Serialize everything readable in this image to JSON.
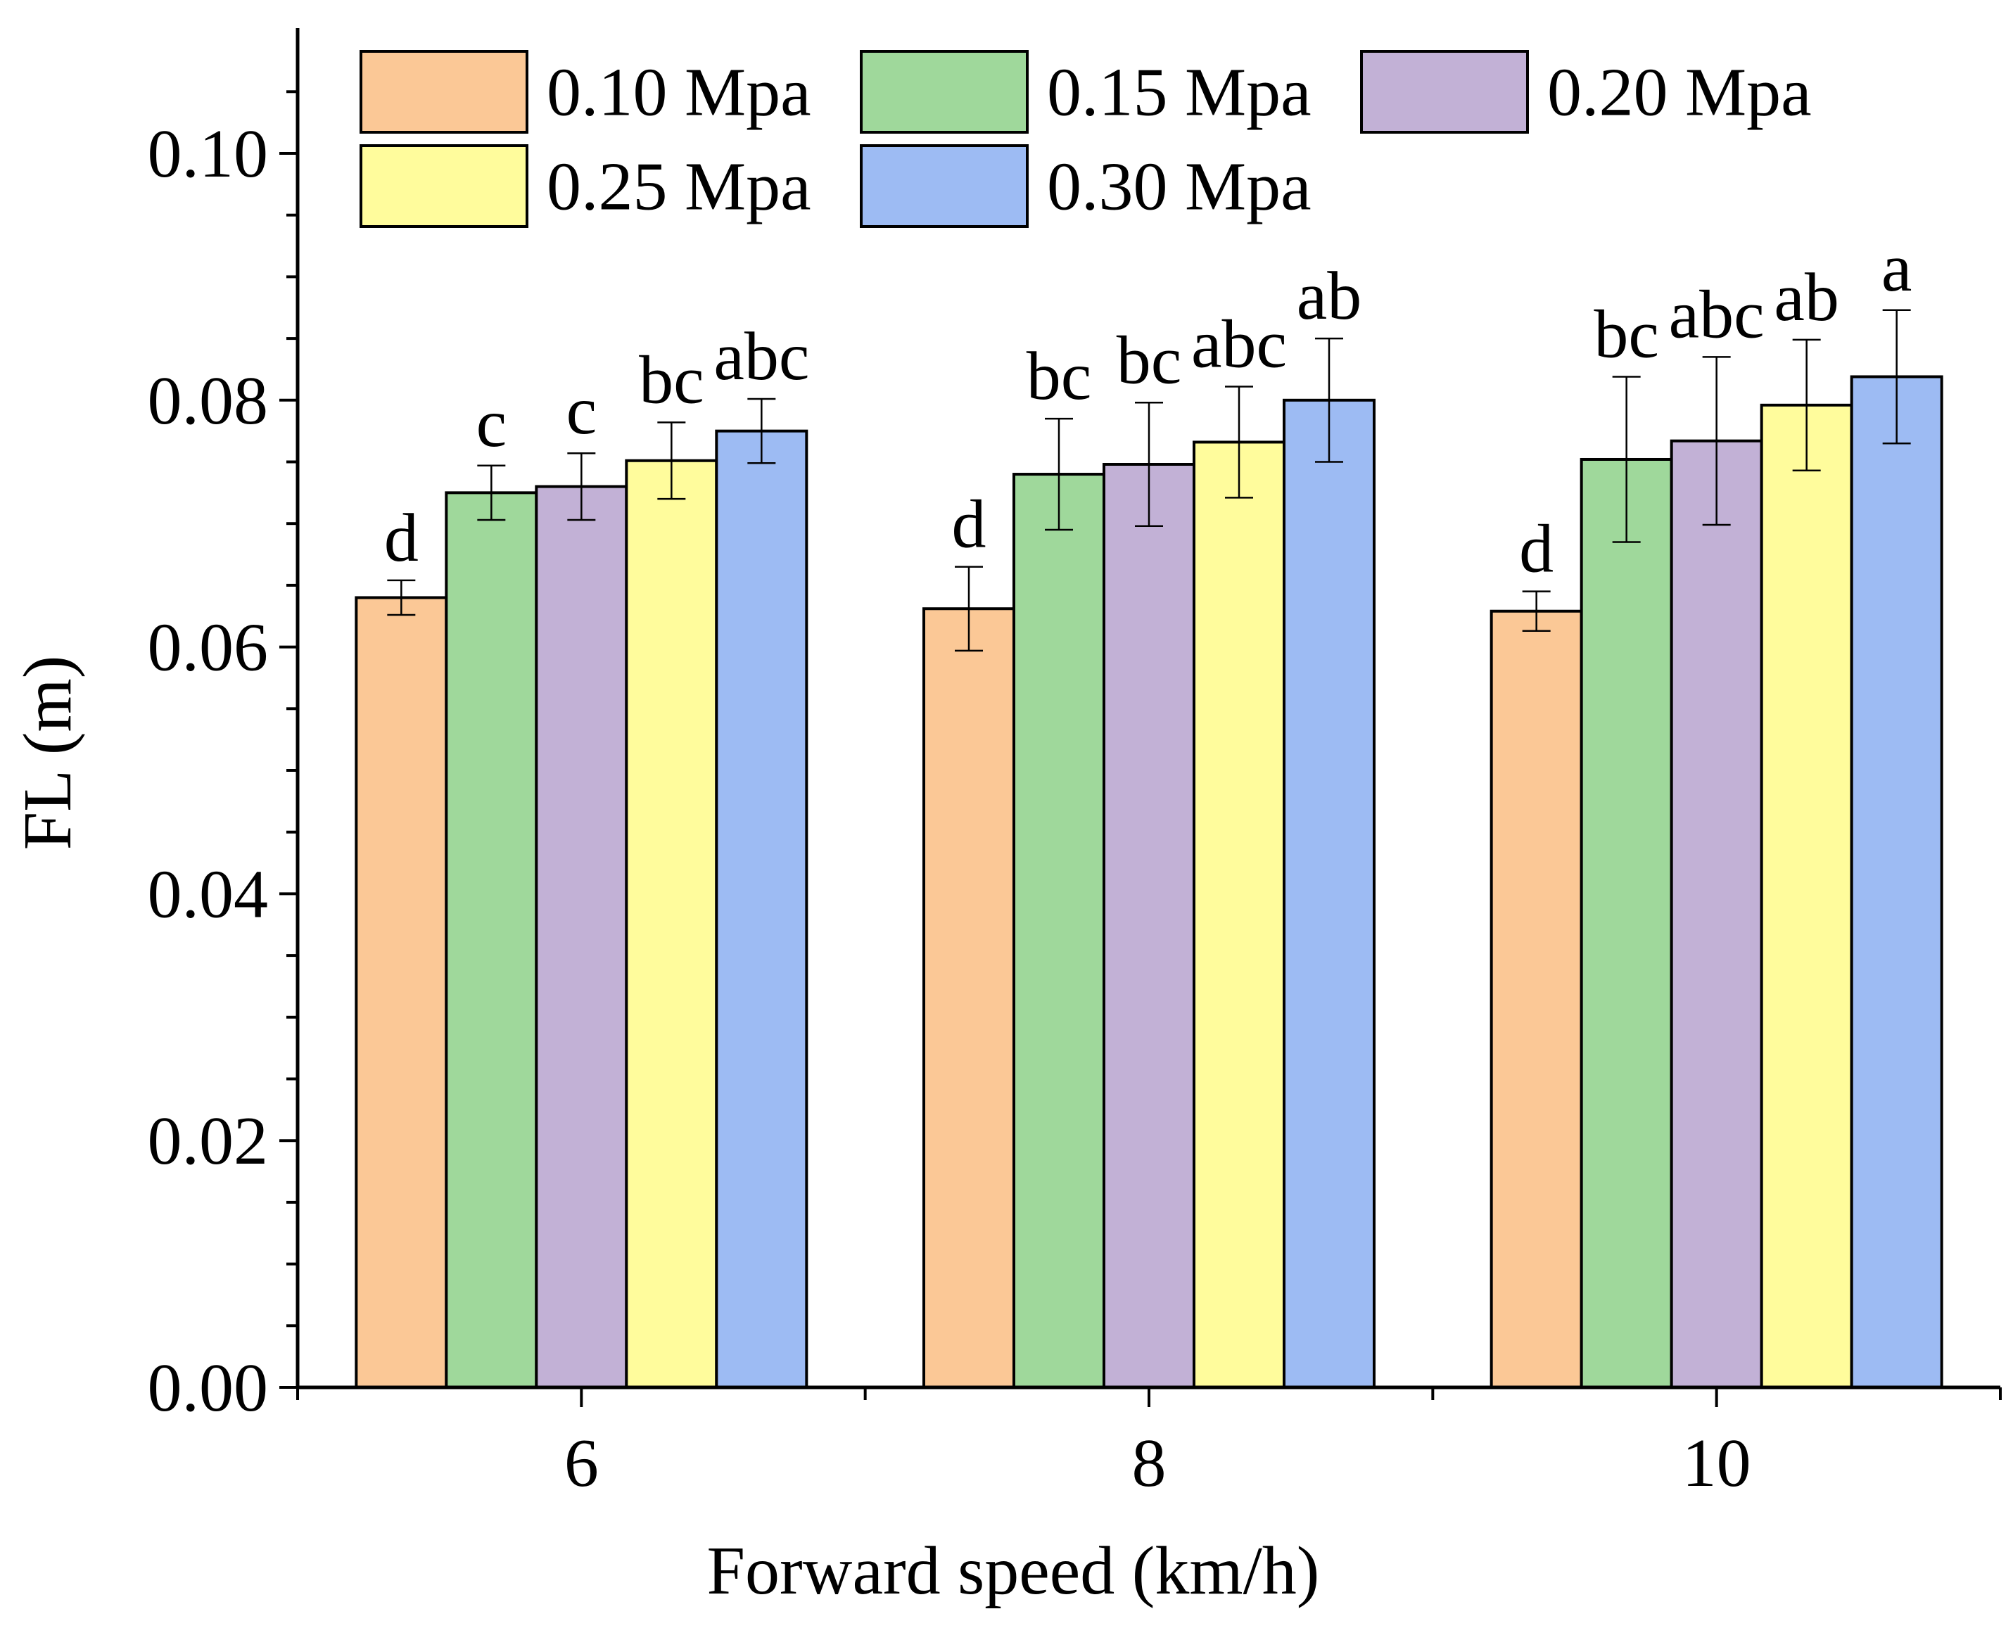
{
  "chart_data": {
    "type": "bar",
    "title": "",
    "xlabel": "Forward speed (km/h)",
    "ylabel": "FL (m)",
    "ylim": [
      0,
      0.11
    ],
    "yticks": [
      "0.00",
      "0.02",
      "0.04",
      "0.06",
      "0.08",
      "0.10"
    ],
    "categories": [
      "6",
      "8",
      "10"
    ],
    "legend_position": "top-left",
    "series": [
      {
        "name": "0.10 Mpa",
        "color": "#FBC896",
        "values": [
          0.064,
          0.0631,
          0.0629
        ],
        "errors": [
          0.0014,
          0.0034,
          0.0016
        ],
        "letters": [
          "d",
          "d",
          "d"
        ]
      },
      {
        "name": "0.15 Mpa",
        "color": "#9FD89B",
        "values": [
          0.0725,
          0.074,
          0.0752
        ],
        "errors": [
          0.0022,
          0.0045,
          0.0067
        ],
        "letters": [
          "c",
          "bc",
          "bc"
        ]
      },
      {
        "name": "0.20 Mpa",
        "color": "#C2B1D6",
        "values": [
          0.073,
          0.0748,
          0.0767
        ],
        "errors": [
          0.0027,
          0.005,
          0.0068
        ],
        "letters": [
          "c",
          "bc",
          "abc"
        ]
      },
      {
        "name": "0.25 Mpa",
        "color": "#FFFC9C",
        "values": [
          0.0751,
          0.0766,
          0.0796
        ],
        "errors": [
          0.0031,
          0.0045,
          0.0053
        ],
        "letters": [
          "bc",
          "abc",
          "ab"
        ]
      },
      {
        "name": "0.30 Mpa",
        "color": "#9DBBF3",
        "values": [
          0.0775,
          0.08,
          0.0819
        ],
        "errors": [
          0.0026,
          0.005,
          0.0054
        ],
        "letters": [
          "abc",
          "ab",
          "a"
        ]
      }
    ]
  }
}
